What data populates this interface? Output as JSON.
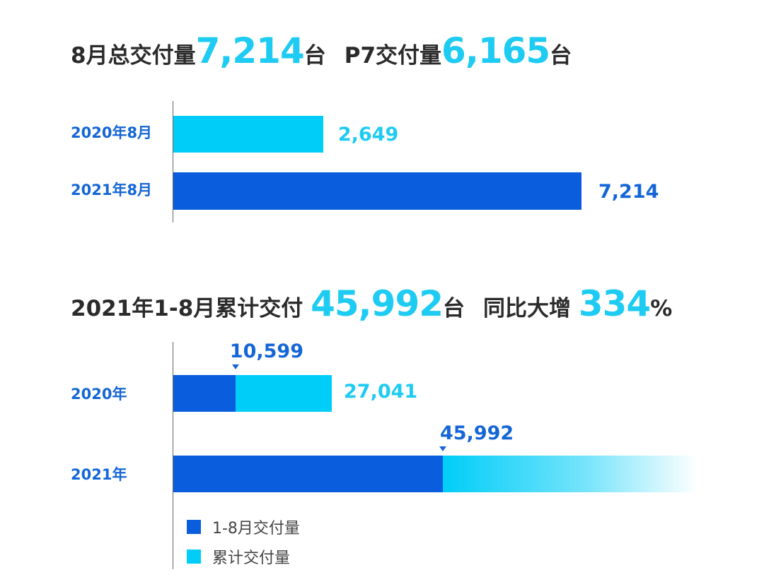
{
  "headline1": {
    "part1": "8月总交付量",
    "total": "7,214",
    "unit1": "台",
    "part2": "P7交付量",
    "p7": "6,165",
    "unit2": "台"
  },
  "headline2": {
    "part1": "2021年1-8月累计交付",
    "total": "45,992",
    "unit1": "台",
    "part2": "同比大增",
    "growth": "334",
    "pct": "%"
  },
  "colors": {
    "dark_blue": "#0a5ddc",
    "light_blue": "#00cdf8",
    "text_dark_blue": "#1466d6",
    "text_light_blue": "#1ecbf2"
  },
  "chart_data": [
    {
      "type": "bar",
      "orientation": "horizontal",
      "categories": [
        "2020年8月",
        "2021年8月"
      ],
      "values": [
        2649,
        7214
      ],
      "value_labels": [
        "2,649",
        "7,214"
      ],
      "bar_colors": [
        "light_blue",
        "dark_blue"
      ]
    },
    {
      "type": "bar",
      "orientation": "horizontal",
      "stacked": true,
      "categories": [
        "2020年",
        "2021年"
      ],
      "series": [
        {
          "name": "1-8月交付量",
          "values": [
            10599,
            45992
          ],
          "labels": [
            "10,599",
            "45,992"
          ]
        },
        {
          "name": "累计交付量",
          "values": [
            27041,
            null
          ],
          "labels": [
            "27,041",
            ""
          ]
        }
      ],
      "legend_position": "bottom-left"
    }
  ]
}
